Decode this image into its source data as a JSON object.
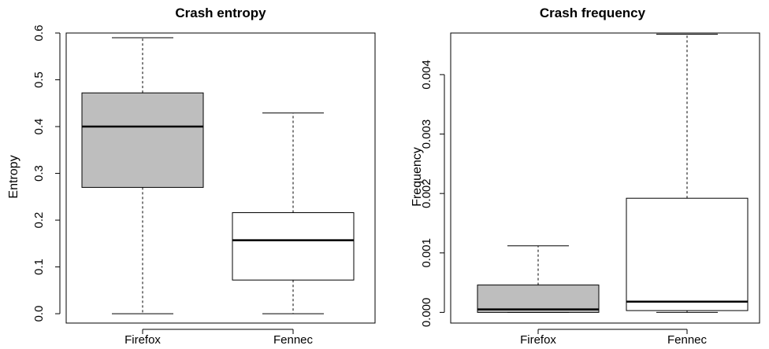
{
  "colors": {
    "firefox_fill": "#bebebe",
    "fennec_fill": "#ffffff",
    "stroke": "#000000"
  },
  "chart_data": [
    {
      "type": "boxplot",
      "title": "Crash entropy",
      "xlabel": "",
      "ylabel": "Entropy",
      "ylim": [
        -0.02,
        0.6
      ],
      "yticks": [
        "0.0",
        "0.1",
        "0.2",
        "0.3",
        "0.4",
        "0.5",
        "0.6"
      ],
      "categories": [
        "Firefox",
        "Fennec"
      ],
      "boxes": [
        {
          "name": "Firefox",
          "fill": "#bebebe",
          "min": 0.0,
          "q1": 0.27,
          "median": 0.4,
          "q3": 0.472,
          "max": 0.59
        },
        {
          "name": "Fennec",
          "fill": "#ffffff",
          "min": 0.0,
          "q1": 0.072,
          "median": 0.157,
          "q3": 0.216,
          "max": 0.429
        }
      ],
      "grid": false
    },
    {
      "type": "boxplot",
      "title": "Crash frequency",
      "xlabel": "",
      "ylabel": "Frequency",
      "ylim": [
        -0.00018,
        0.0047
      ],
      "yticks": [
        "0.000",
        "0.001",
        "0.002",
        "0.003",
        "0.004"
      ],
      "categories": [
        "Firefox",
        "Fennec"
      ],
      "boxes": [
        {
          "name": "Firefox",
          "fill": "#bebebe",
          "min": 0.0,
          "q1": 0.0,
          "median": 5e-05,
          "q3": 0.00046,
          "max": 0.00112
        },
        {
          "name": "Fennec",
          "fill": "#ffffff",
          "min": 0.0,
          "q1": 3e-05,
          "median": 0.00018,
          "q3": 0.00192,
          "max": 0.00468
        }
      ],
      "grid": false
    }
  ]
}
